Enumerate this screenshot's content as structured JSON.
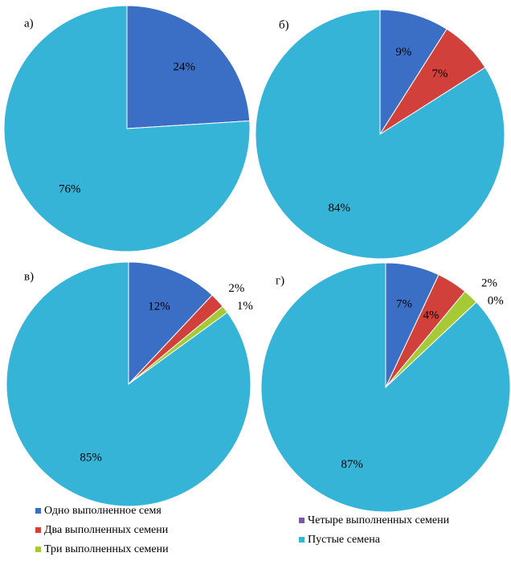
{
  "chart_data": [
    {
      "type": "pie",
      "title": "а)",
      "categories": [
        "Одно выполненное семя",
        "Пустые семена"
      ],
      "values": [
        24,
        76
      ],
      "value_labels": [
        "24%",
        "76%"
      ],
      "colors": [
        "#3b6fc6",
        "#36b4d8"
      ]
    },
    {
      "type": "pie",
      "title": "б)",
      "categories": [
        "Одно выполненное семя",
        "Два выполненных семени",
        "Пустые семена"
      ],
      "values": [
        9,
        7,
        84
      ],
      "value_labels": [
        "9%",
        "7%",
        "84%"
      ],
      "colors": [
        "#3b6fc6",
        "#d2403c",
        "#36b4d8"
      ]
    },
    {
      "type": "pie",
      "title": "в)",
      "categories": [
        "Одно выполненное семя",
        "Два выполненных семени",
        "Три выполненных семени",
        "Пустые семена"
      ],
      "values": [
        12,
        2,
        1,
        85
      ],
      "value_labels": [
        "12%",
        "2%",
        "1%",
        "85%"
      ],
      "colors": [
        "#3b6fc6",
        "#d2403c",
        "#a6c936",
        "#36b4d8"
      ]
    },
    {
      "type": "pie",
      "title": "г)",
      "categories": [
        "Одно выполненное семя",
        "Два выполненных семени",
        "Три выполненных семени",
        "Четыре выполненных семени",
        "Пустые семена"
      ],
      "values": [
        7,
        4,
        2,
        0,
        87
      ],
      "value_labels": [
        "7%",
        "4%",
        "2%",
        "0%",
        "87%"
      ],
      "colors": [
        "#3b6fc6",
        "#d2403c",
        "#a6c936",
        "#7a58a8",
        "#36b4d8"
      ]
    }
  ]
}
